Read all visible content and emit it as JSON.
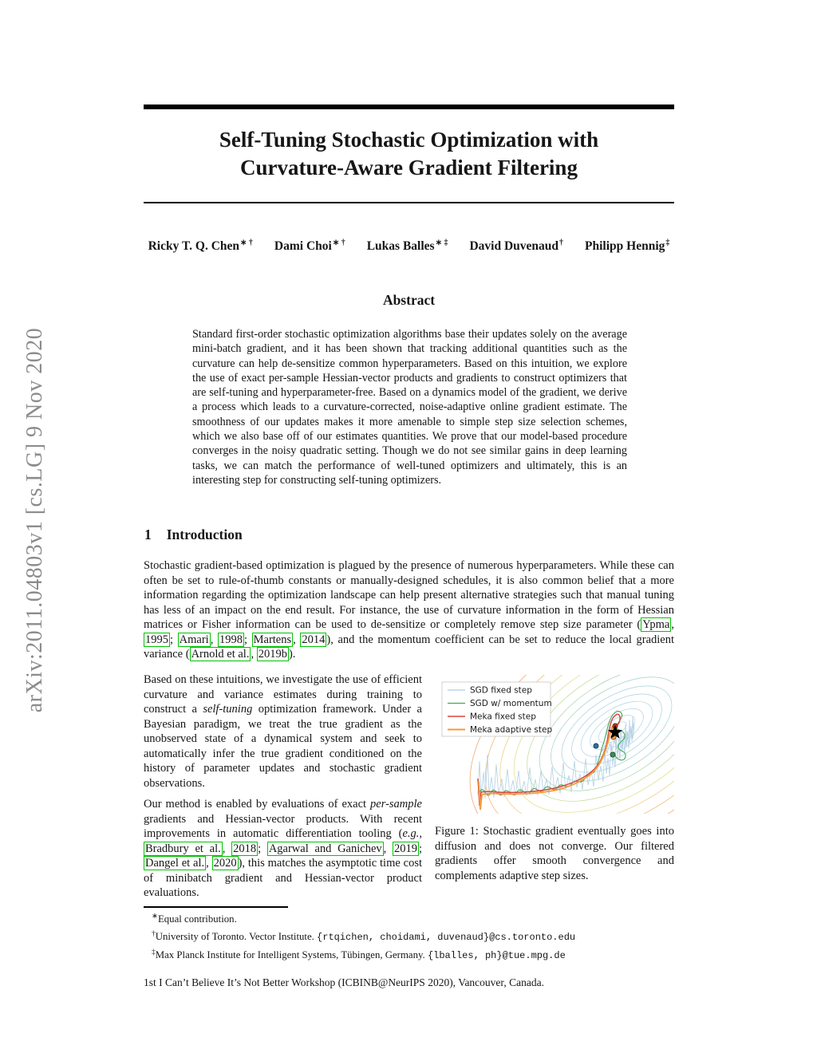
{
  "watermark": "arXiv:2011.04803v1  [cs.LG]  9 Nov 2020",
  "header": {
    "title_line1": "Self-Tuning Stochastic Optimization with",
    "title_line2": "Curvature-Aware Gradient Filtering"
  },
  "authors": [
    {
      "name": "Ricky T. Q. Chen",
      "marker": "∗ †"
    },
    {
      "name": "Dami Choi",
      "marker": "∗ †"
    },
    {
      "name": "Lukas Balles",
      "marker": "∗ ‡"
    },
    {
      "name": "David Duvenaud",
      "marker": "†"
    },
    {
      "name": "Philipp Hennig",
      "marker": "‡"
    }
  ],
  "abstract": {
    "heading": "Abstract",
    "text": "Standard first-order stochastic optimization algorithms base their updates solely on the average mini-batch gradient, and it has been shown that tracking additional quantities such as the curvature can help de-sensitize common hyperparameters. Based on this intuition, we explore the use of exact per-sample Hessian-vector products and gradients to construct optimizers that are self-tuning and hyperparameter-free. Based on a dynamics model of the gradient, we derive a process which leads to a curvature-corrected, noise-adaptive online gradient estimate. The smoothness of our updates makes it more amenable to simple step size selection schemes, which we also base off of our estimates quantities. We prove that our model-based procedure converges in the noisy quadratic setting. Though we do not see similar gains in deep learning tasks, we can match the performance of well-tuned optimizers and ultimately, this is an interesting step for constructing self-tuning optimizers."
  },
  "section1": {
    "number": "1",
    "title": "Introduction"
  },
  "paragraphs": {
    "intro": [
      {
        "t": "Stochastic gradient-based optimization is plagued by the presence of numerous hyperparameters. While these can often be set to rule-of-thumb constants or manually-designed schedules, it is also common belief that a more information regarding the optimization landscape can help present alternative strategies such that manual tuning has less of an impact on the end result. For instance, the use of curvature information in the form of Hessian matrices or Fisher information can be used to de-sensitize or completely remove step size parameter ("
      },
      {
        "t": "Ypma",
        "s": "c"
      },
      {
        "t": ", "
      },
      {
        "t": "1995",
        "s": "c"
      },
      {
        "t": "; "
      },
      {
        "t": "Amari",
        "s": "c"
      },
      {
        "t": ", "
      },
      {
        "t": "1998",
        "s": "c"
      },
      {
        "t": "; "
      },
      {
        "t": "Martens",
        "s": "c"
      },
      {
        "t": ", "
      },
      {
        "t": "2014",
        "s": "c"
      },
      {
        "t": "), and the momentum coefficient can be set to reduce the local gradient variance ("
      },
      {
        "t": "Arnold et al.",
        "s": "c"
      },
      {
        "t": ", "
      },
      {
        "t": "2019b",
        "s": "c"
      },
      {
        "t": ")."
      }
    ],
    "col1_p1": [
      {
        "t": "Based on these intuitions, we investigate the use of efficient curvature and variance estimates during training to construct a "
      },
      {
        "t": "self-tuning",
        "s": "i"
      },
      {
        "t": " optimization framework. Under a Bayesian paradigm, we treat the true gradient as the unobserved state of a dynamical system and seek to automatically infer the true gradient conditioned on the history of parameter updates and stochastic gradient observations."
      }
    ],
    "col1_p2": [
      {
        "t": "Our method is enabled by evaluations of exact "
      },
      {
        "t": "per-sample",
        "s": "i"
      },
      {
        "t": " gradients and Hessian-vector products. With recent improvements in automatic differentiation tooling ("
      },
      {
        "t": "e.g.",
        "s": "i"
      },
      {
        "t": ", "
      },
      {
        "t": "Bradbury et al.",
        "s": "c"
      },
      {
        "t": ", "
      },
      {
        "t": "2018",
        "s": "c"
      },
      {
        "t": "; "
      },
      {
        "t": "Agarwal and Ganichev",
        "s": "c"
      },
      {
        "t": ", "
      },
      {
        "t": "2019",
        "s": "c"
      },
      {
        "t": "; "
      },
      {
        "t": "Dangel et al.",
        "s": "c"
      },
      {
        "t": ", "
      },
      {
        "t": "2020",
        "s": "c"
      },
      {
        "t": "), this matches the asymptotic time cost of minibatch gradient and Hessian-vector product evaluations."
      }
    ]
  },
  "figure": {
    "legend": [
      "SGD fixed step",
      "SGD w/ momentum",
      "Meka fixed step",
      "Meka adaptive step"
    ],
    "legend_colors": [
      "#aecde3",
      "#48a456",
      "#d9473d",
      "#f59a3d"
    ],
    "caption": "Figure 1: Stochastic gradient eventually goes into diffusion and does not converge. Our filtered gradients offer smooth convergence and complements adaptive step sizes."
  },
  "footnotes": [
    [
      {
        "t": "∗",
        "s": "sup"
      },
      {
        "t": "Equal contribution."
      }
    ],
    [
      {
        "t": "†",
        "s": "sup"
      },
      {
        "t": "University of Toronto. Vector Institute. "
      },
      {
        "t": "{rtqichen, choidami, duvenaud}@cs.toronto.edu",
        "s": "tt"
      }
    ],
    [
      {
        "t": "‡",
        "s": "sup"
      },
      {
        "t": "Max Planck Institute for Intelligent Systems, Tübingen, Germany. "
      },
      {
        "t": "{lballes, ph}@tue.mpg.de",
        "s": "tt"
      }
    ]
  ],
  "footer": "1st I Can’t Believe It’s Not Better Workshop (ICBINB@NeurIPS 2020), Vancouver, Canada.",
  "colors": {
    "citation_box": "#00c400",
    "watermark_gray": "#8c8c8c"
  }
}
